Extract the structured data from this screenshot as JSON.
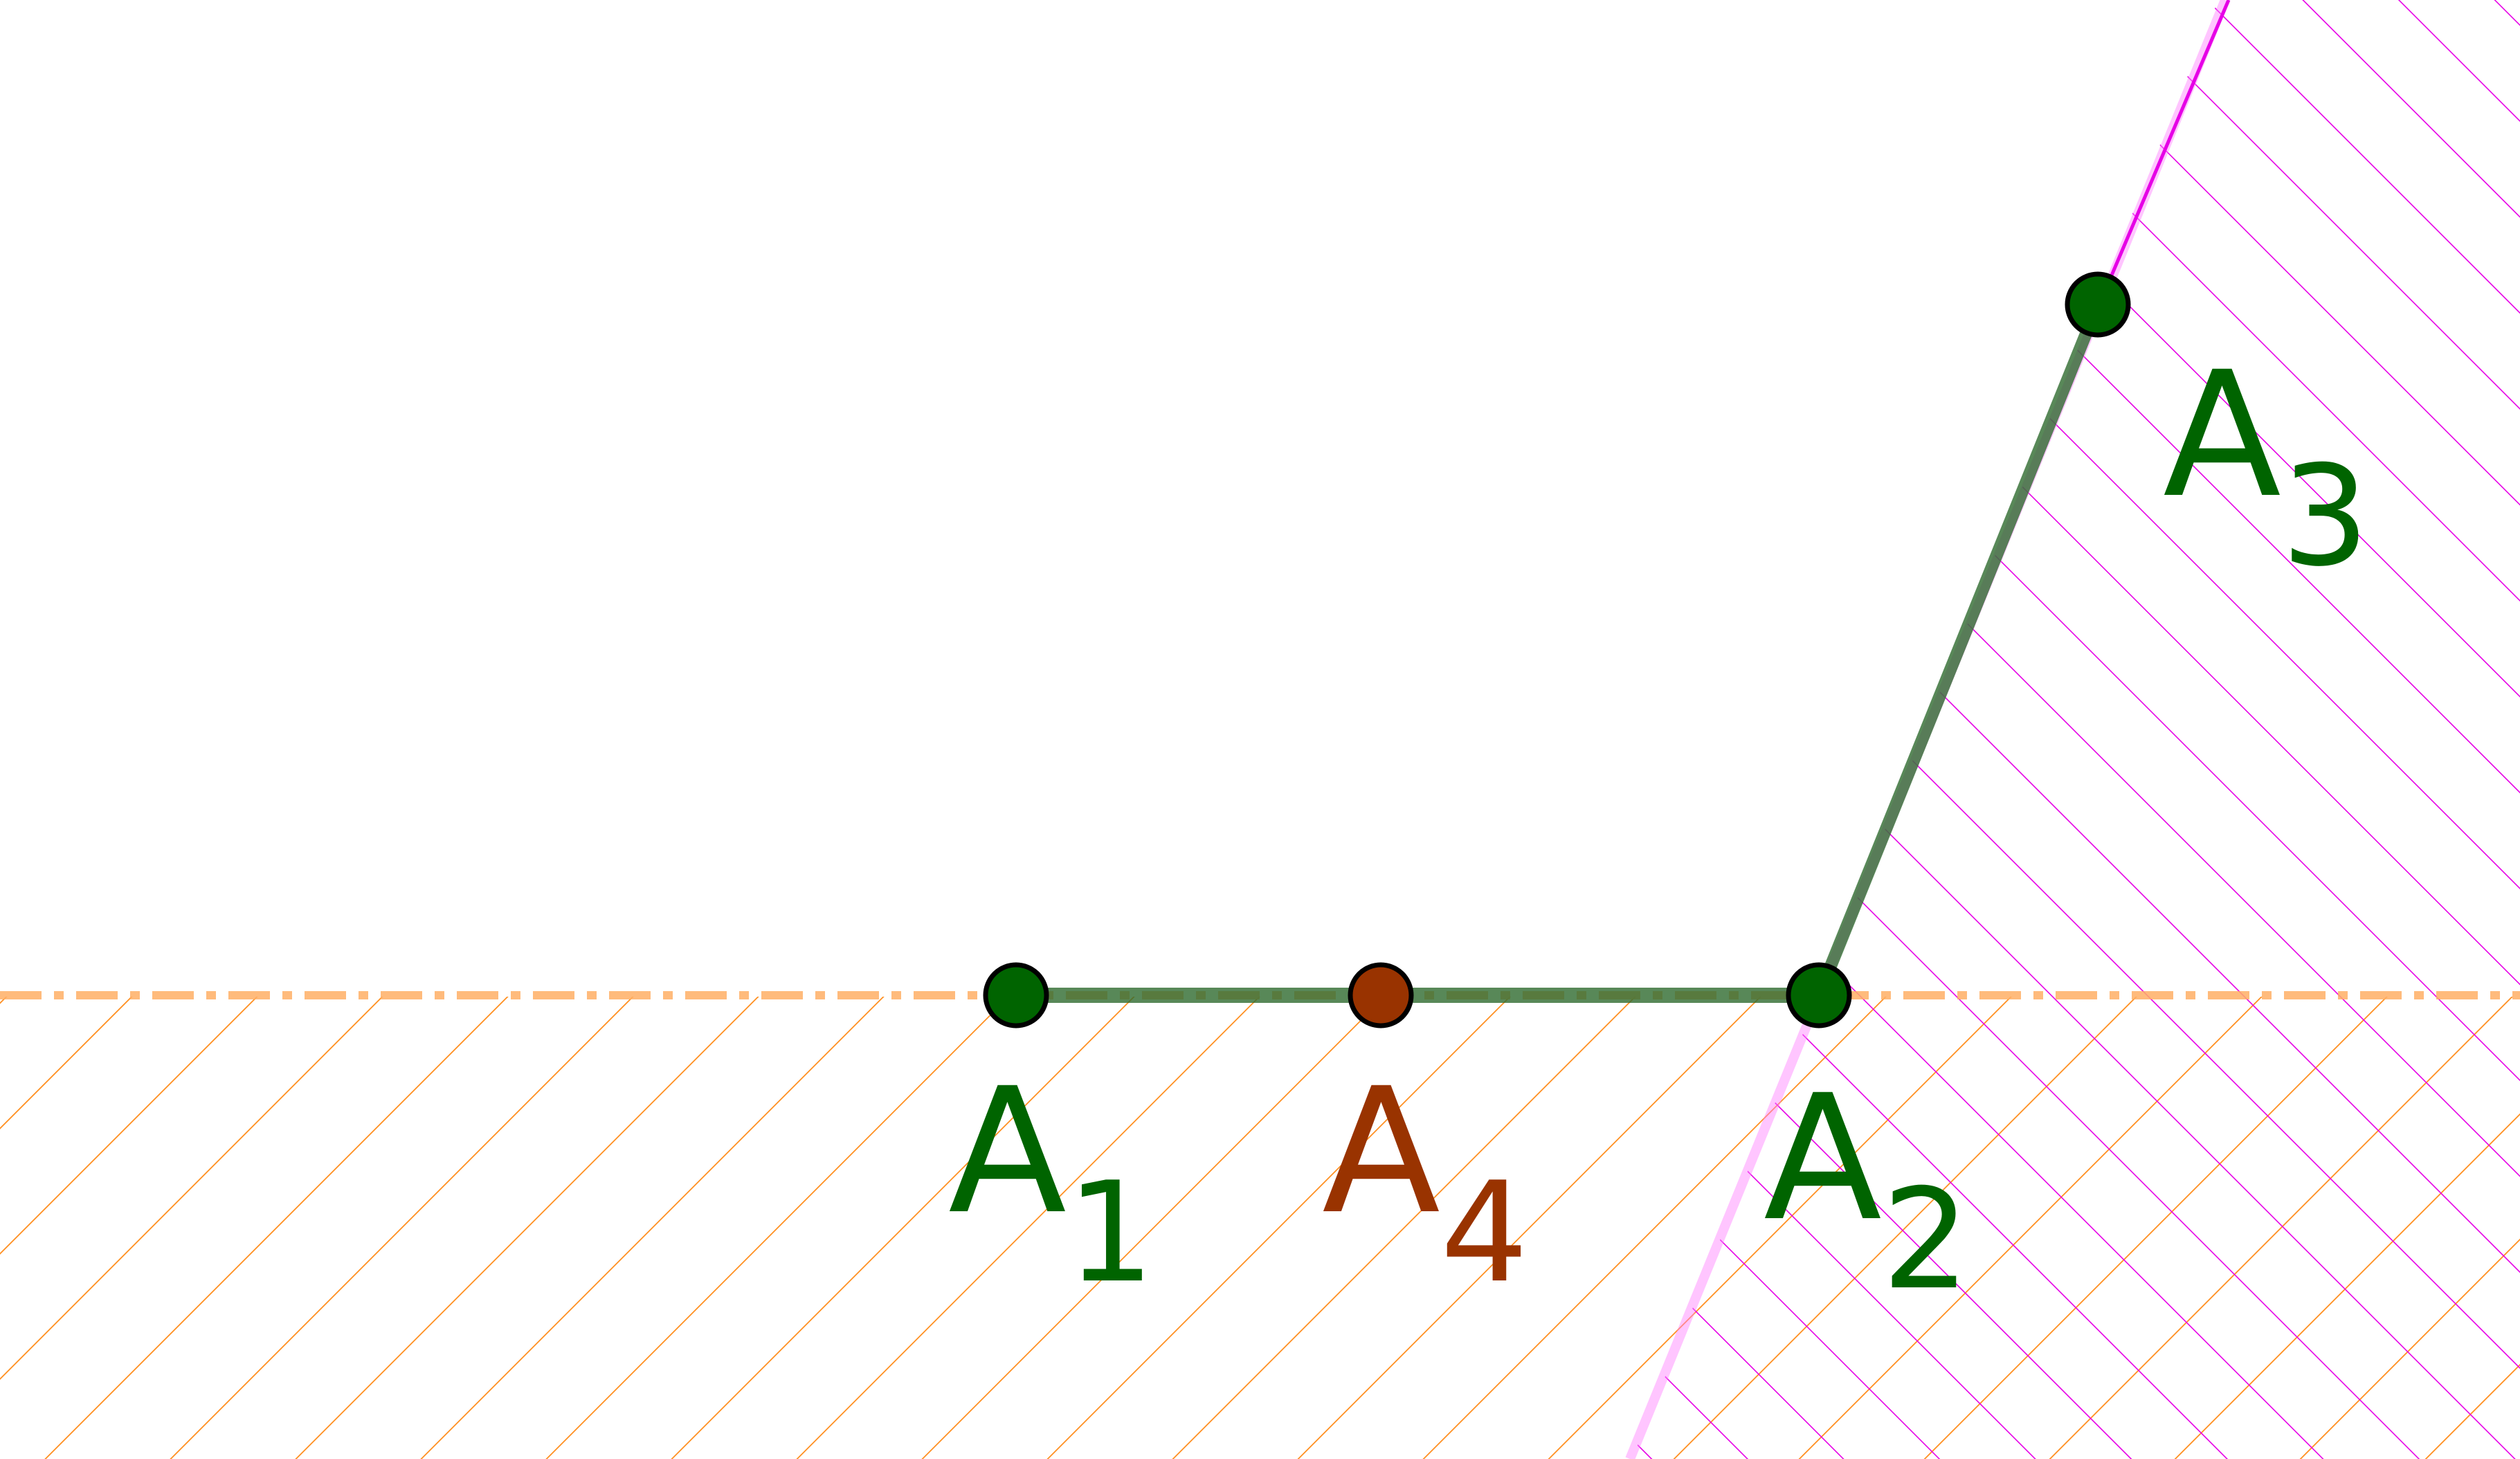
{
  "diagram": {
    "points": [
      {
        "id": "A1",
        "base": "A",
        "sub": "1",
        "color": "#006400"
      },
      {
        "id": "A2",
        "base": "A",
        "sub": "2",
        "color": "#006400"
      },
      {
        "id": "A3",
        "base": "A",
        "sub": "3",
        "color": "#006400"
      },
      {
        "id": "A4",
        "base": "A",
        "sub": "4",
        "color": "#993300"
      }
    ],
    "colors": {
      "segment": "#2f6b2f",
      "orange_hatch": "#ff8c1a",
      "magenta_hatch": "#e600e6",
      "point_outline": "#000000",
      "background": "#ffffff"
    }
  }
}
